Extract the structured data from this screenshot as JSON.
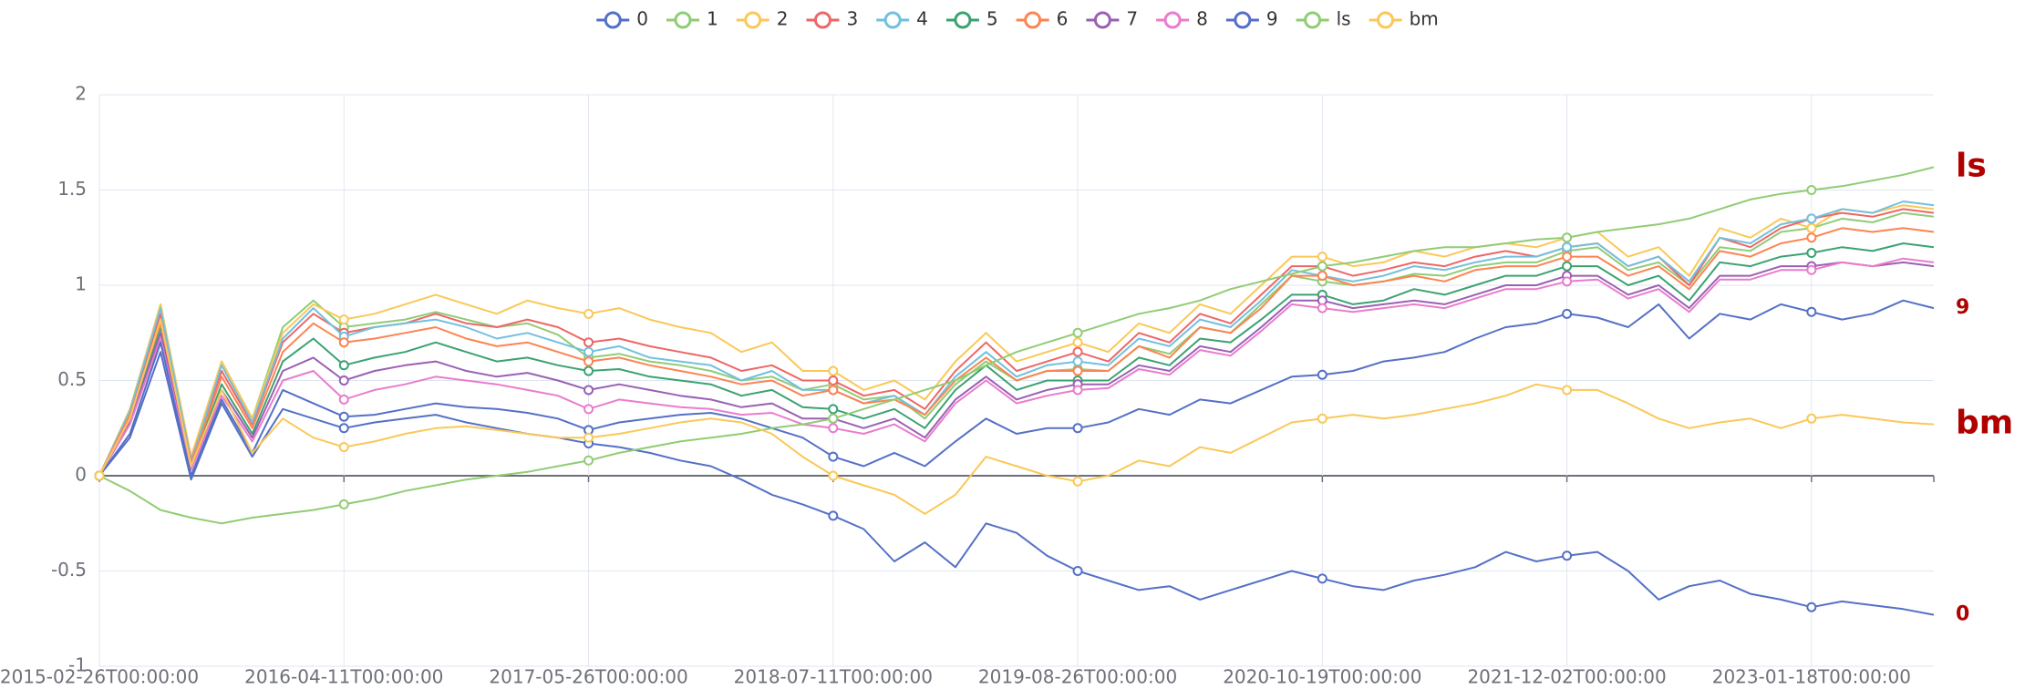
{
  "chart_data": {
    "type": "line",
    "categories": [
      "2015-02-26T00:00:00",
      null,
      null,
      null,
      null,
      null,
      null,
      null,
      "2016-04-11T00:00:00",
      null,
      null,
      null,
      null,
      null,
      null,
      null,
      "2017-05-26T00:00:00",
      null,
      null,
      null,
      null,
      null,
      null,
      null,
      "2018-07-11T00:00:00",
      null,
      null,
      null,
      null,
      null,
      null,
      null,
      "2019-08-26T00:00:00",
      null,
      null,
      null,
      null,
      null,
      null,
      null,
      "2020-10-19T00:00:00",
      null,
      null,
      null,
      null,
      null,
      null,
      null,
      "2021-12-02T00:00:00",
      null,
      null,
      null,
      null,
      null,
      null,
      null,
      "2023-01-18T00:00:00",
      null,
      null,
      null,
      null
    ],
    "ylim": [
      -1,
      2
    ],
    "yticks": [
      -1,
      -0.5,
      0,
      0.5,
      1,
      1.5,
      2
    ],
    "grid": true,
    "legend": "top",
    "series": [
      {
        "name": "0",
        "color": "#5470c6",
        "end_label": true,
        "values": [
          0,
          0.2,
          0.65,
          -0.02,
          0.38,
          0.1,
          0.35,
          0.3,
          0.25,
          0.28,
          0.3,
          0.32,
          0.28,
          0.25,
          0.22,
          0.2,
          0.17,
          0.15,
          0.12,
          0.08,
          0.05,
          -0.02,
          -0.1,
          -0.15,
          -0.21,
          -0.28,
          -0.45,
          -0.35,
          -0.48,
          -0.25,
          -0.3,
          -0.42,
          -0.5,
          -0.55,
          -0.6,
          -0.58,
          -0.65,
          -0.6,
          -0.55,
          -0.5,
          -0.54,
          -0.58,
          -0.6,
          -0.55,
          -0.52,
          -0.48,
          -0.4,
          -0.45,
          -0.42,
          -0.4,
          -0.5,
          -0.65,
          -0.58,
          -0.55,
          -0.62,
          -0.65,
          -0.69,
          -0.66,
          -0.68,
          -0.7,
          -0.73
        ]
      },
      {
        "name": "1",
        "color": "#91cc75",
        "values": [
          0,
          0.34,
          0.9,
          0.09,
          0.6,
          0.3,
          0.78,
          0.92,
          0.78,
          0.8,
          0.82,
          0.86,
          0.82,
          0.78,
          0.8,
          0.74,
          0.62,
          0.64,
          0.6,
          0.58,
          0.55,
          0.5,
          0.52,
          0.45,
          0.48,
          0.4,
          0.42,
          0.3,
          0.48,
          0.6,
          0.5,
          0.55,
          0.56,
          0.55,
          0.68,
          0.64,
          0.78,
          0.75,
          0.9,
          1.05,
          1.02,
          1.0,
          1.02,
          1.06,
          1.05,
          1.1,
          1.12,
          1.12,
          1.18,
          1.2,
          1.08,
          1.12,
          1.0,
          1.2,
          1.18,
          1.28,
          1.3,
          1.35,
          1.33,
          1.38,
          1.36
        ]
      },
      {
        "name": "2",
        "color": "#fac858",
        "values": [
          0,
          0.35,
          0.9,
          0.1,
          0.6,
          0.3,
          0.75,
          0.9,
          0.82,
          0.85,
          0.9,
          0.95,
          0.9,
          0.85,
          0.92,
          0.88,
          0.85,
          0.88,
          0.82,
          0.78,
          0.75,
          0.65,
          0.7,
          0.55,
          0.55,
          0.45,
          0.5,
          0.4,
          0.6,
          0.75,
          0.6,
          0.65,
          0.7,
          0.65,
          0.8,
          0.75,
          0.9,
          0.85,
          1.0,
          1.15,
          1.15,
          1.1,
          1.12,
          1.18,
          1.15,
          1.2,
          1.22,
          1.2,
          1.25,
          1.28,
          1.15,
          1.2,
          1.05,
          1.3,
          1.25,
          1.35,
          1.3,
          1.4,
          1.38,
          1.42,
          1.4
        ]
      },
      {
        "name": "3",
        "color": "#ee6666",
        "values": [
          0,
          0.33,
          0.85,
          0.08,
          0.55,
          0.27,
          0.7,
          0.85,
          0.75,
          0.78,
          0.8,
          0.85,
          0.8,
          0.78,
          0.82,
          0.78,
          0.7,
          0.72,
          0.68,
          0.65,
          0.62,
          0.55,
          0.58,
          0.5,
          0.5,
          0.42,
          0.45,
          0.35,
          0.55,
          0.7,
          0.55,
          0.6,
          0.65,
          0.6,
          0.75,
          0.7,
          0.85,
          0.8,
          0.95,
          1.1,
          1.1,
          1.05,
          1.08,
          1.12,
          1.1,
          1.15,
          1.18,
          1.15,
          1.2,
          1.22,
          1.1,
          1.15,
          1.0,
          1.25,
          1.2,
          1.3,
          1.35,
          1.38,
          1.36,
          1.4,
          1.38
        ]
      },
      {
        "name": "4",
        "color": "#73c0de",
        "values": [
          0,
          0.34,
          0.88,
          0.07,
          0.58,
          0.28,
          0.72,
          0.88,
          0.73,
          0.78,
          0.8,
          0.82,
          0.78,
          0.72,
          0.75,
          0.7,
          0.65,
          0.68,
          0.62,
          0.6,
          0.58,
          0.5,
          0.55,
          0.45,
          0.45,
          0.38,
          0.42,
          0.32,
          0.52,
          0.65,
          0.52,
          0.58,
          0.6,
          0.58,
          0.72,
          0.68,
          0.82,
          0.78,
          0.92,
          1.08,
          1.05,
          1.02,
          1.05,
          1.1,
          1.08,
          1.12,
          1.15,
          1.15,
          1.2,
          1.22,
          1.1,
          1.15,
          1.02,
          1.25,
          1.22,
          1.32,
          1.35,
          1.4,
          1.38,
          1.44,
          1.42
        ]
      },
      {
        "name": "5",
        "color": "#3ba272",
        "values": [
          0,
          0.3,
          0.78,
          0.05,
          0.48,
          0.22,
          0.6,
          0.72,
          0.58,
          0.62,
          0.65,
          0.7,
          0.65,
          0.6,
          0.62,
          0.58,
          0.55,
          0.56,
          0.52,
          0.5,
          0.48,
          0.42,
          0.45,
          0.36,
          0.35,
          0.3,
          0.35,
          0.25,
          0.45,
          0.58,
          0.45,
          0.5,
          0.5,
          0.5,
          0.62,
          0.58,
          0.72,
          0.7,
          0.82,
          0.95,
          0.95,
          0.9,
          0.92,
          0.98,
          0.95,
          1.0,
          1.05,
          1.05,
          1.1,
          1.1,
          1.0,
          1.05,
          0.92,
          1.12,
          1.1,
          1.15,
          1.17,
          1.2,
          1.18,
          1.22,
          1.2
        ]
      },
      {
        "name": "6",
        "color": "#fc8452",
        "values": [
          0,
          0.32,
          0.8,
          0.06,
          0.52,
          0.25,
          0.65,
          0.8,
          0.7,
          0.72,
          0.75,
          0.78,
          0.72,
          0.68,
          0.7,
          0.65,
          0.6,
          0.62,
          0.58,
          0.55,
          0.52,
          0.48,
          0.5,
          0.42,
          0.45,
          0.38,
          0.4,
          0.32,
          0.5,
          0.62,
          0.5,
          0.55,
          0.55,
          0.55,
          0.68,
          0.62,
          0.78,
          0.75,
          0.88,
          1.05,
          1.05,
          1.0,
          1.02,
          1.05,
          1.02,
          1.08,
          1.1,
          1.1,
          1.15,
          1.15,
          1.05,
          1.1,
          0.98,
          1.18,
          1.15,
          1.22,
          1.25,
          1.3,
          1.28,
          1.3,
          1.28
        ]
      },
      {
        "name": "7",
        "color": "#9a60b4",
        "values": [
          0,
          0.28,
          0.75,
          0.04,
          0.45,
          0.2,
          0.55,
          0.62,
          0.5,
          0.55,
          0.58,
          0.6,
          0.55,
          0.52,
          0.54,
          0.5,
          0.45,
          0.48,
          0.45,
          0.42,
          0.4,
          0.36,
          0.38,
          0.3,
          0.3,
          0.25,
          0.3,
          0.2,
          0.4,
          0.52,
          0.4,
          0.45,
          0.48,
          0.48,
          0.58,
          0.55,
          0.68,
          0.65,
          0.78,
          0.92,
          0.92,
          0.88,
          0.9,
          0.92,
          0.9,
          0.95,
          1.0,
          1.0,
          1.05,
          1.05,
          0.95,
          1.0,
          0.88,
          1.05,
          1.05,
          1.1,
          1.1,
          1.12,
          1.1,
          1.12,
          1.1
        ]
      },
      {
        "name": "8",
        "color": "#ea7ccc",
        "values": [
          0,
          0.27,
          0.72,
          0.03,
          0.42,
          0.18,
          0.5,
          0.55,
          0.4,
          0.45,
          0.48,
          0.52,
          0.5,
          0.48,
          0.45,
          0.42,
          0.35,
          0.4,
          0.38,
          0.36,
          0.35,
          0.32,
          0.33,
          0.27,
          0.25,
          0.22,
          0.27,
          0.18,
          0.38,
          0.5,
          0.38,
          0.42,
          0.45,
          0.46,
          0.56,
          0.53,
          0.66,
          0.63,
          0.76,
          0.9,
          0.88,
          0.86,
          0.88,
          0.9,
          0.88,
          0.93,
          0.98,
          0.98,
          1.02,
          1.03,
          0.93,
          0.98,
          0.86,
          1.03,
          1.03,
          1.08,
          1.08,
          1.12,
          1.1,
          1.14,
          1.12
        ]
      },
      {
        "name": "9",
        "color": "#5470c6",
        "end_label": true,
        "values": [
          0,
          0.22,
          0.7,
          0.0,
          0.4,
          0.12,
          0.45,
          0.38,
          0.31,
          0.32,
          0.35,
          0.38,
          0.36,
          0.35,
          0.33,
          0.3,
          0.24,
          0.28,
          0.3,
          0.32,
          0.33,
          0.3,
          0.25,
          0.2,
          0.1,
          0.05,
          0.12,
          0.05,
          0.18,
          0.3,
          0.22,
          0.25,
          0.25,
          0.28,
          0.35,
          0.32,
          0.4,
          0.38,
          0.45,
          0.52,
          0.53,
          0.55,
          0.6,
          0.62,
          0.65,
          0.72,
          0.78,
          0.8,
          0.85,
          0.83,
          0.78,
          0.9,
          0.72,
          0.85,
          0.82,
          0.9,
          0.86,
          0.82,
          0.85,
          0.92,
          0.88
        ]
      },
      {
        "name": "ls",
        "color": "#91cc75",
        "end_label": true,
        "values": [
          0,
          -0.08,
          -0.18,
          -0.22,
          -0.25,
          -0.22,
          -0.2,
          -0.18,
          -0.15,
          -0.12,
          -0.08,
          -0.05,
          -0.02,
          0.0,
          0.02,
          0.05,
          0.08,
          0.12,
          0.15,
          0.18,
          0.2,
          0.22,
          0.25,
          0.27,
          0.3,
          0.35,
          0.4,
          0.45,
          0.5,
          0.58,
          0.65,
          0.7,
          0.75,
          0.8,
          0.85,
          0.88,
          0.92,
          0.98,
          1.02,
          1.06,
          1.1,
          1.12,
          1.15,
          1.18,
          1.2,
          1.2,
          1.22,
          1.24,
          1.25,
          1.28,
          1.3,
          1.32,
          1.35,
          1.4,
          1.45,
          1.48,
          1.5,
          1.52,
          1.55,
          1.58,
          1.62
        ]
      },
      {
        "name": "bm",
        "color": "#fac858",
        "end_label": true,
        "values": [
          0,
          0.3,
          0.82,
          0.05,
          0.45,
          0.12,
          0.3,
          0.2,
          0.15,
          0.18,
          0.22,
          0.25,
          0.26,
          0.24,
          0.22,
          0.2,
          0.2,
          0.22,
          0.25,
          0.28,
          0.3,
          0.28,
          0.22,
          0.1,
          0.0,
          -0.05,
          -0.1,
          -0.2,
          -0.1,
          0.1,
          0.05,
          0.0,
          -0.03,
          0.0,
          0.08,
          0.05,
          0.15,
          0.12,
          0.2,
          0.28,
          0.3,
          0.32,
          0.3,
          0.32,
          0.35,
          0.38,
          0.42,
          0.48,
          0.45,
          0.45,
          0.38,
          0.3,
          0.25,
          0.28,
          0.3,
          0.25,
          0.3,
          0.32,
          0.3,
          0.28,
          0.27
        ]
      }
    ]
  }
}
